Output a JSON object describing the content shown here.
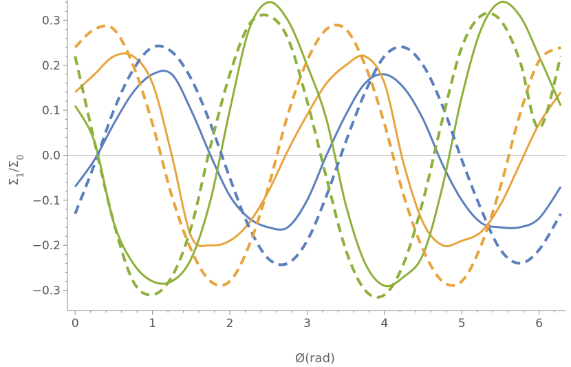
{
  "chart_data": {
    "type": "line",
    "title": "",
    "xlabel": "Ø(rad)",
    "ylabel": "Σ1/Σ0",
    "ylabel_main": "Σ",
    "ylabel_sub1": "1",
    "ylabel_slash": "/Σ",
    "ylabel_sub2": "0",
    "xlim": [
      -0.1,
      6.35
    ],
    "ylim": [
      -0.345,
      0.345
    ],
    "x_ticks": [
      0,
      1,
      2,
      3,
      4,
      5,
      6
    ],
    "x_tick_labels": [
      "0",
      "1",
      "2",
      "3",
      "4",
      "5",
      "6"
    ],
    "y_ticks": [
      -0.3,
      -0.2,
      -0.1,
      0.0,
      0.1,
      0.2,
      0.3
    ],
    "y_tick_labels": [
      "−0.3",
      "−0.2",
      "−0.1",
      "0.0",
      "0.1",
      "0.2",
      "0.3"
    ],
    "zero_line": true,
    "grid": false,
    "legend": "none",
    "colors": {
      "blue": "#5B7FBD",
      "orange": "#E8A33D",
      "green": "#8DB03A",
      "axis": "#888888",
      "zero": "#bbbbbb"
    },
    "series": [
      {
        "style": "solid",
        "color": "#5B7FBD",
        "x": [
          0.0,
          0.25,
          0.5,
          0.75,
          1.0,
          1.25,
          1.5,
          1.75,
          2.0,
          2.25,
          2.5,
          2.75,
          3.0,
          3.25,
          3.5,
          3.75,
          4.0,
          4.25,
          4.5,
          4.75,
          5.0,
          5.25,
          5.5,
          5.75,
          6.0,
          6.28
        ],
        "y": [
          -0.07,
          -0.01,
          0.07,
          0.14,
          0.18,
          0.18,
          0.1,
          0.0,
          -0.09,
          -0.14,
          -0.16,
          -0.16,
          -0.1,
          0.0,
          0.09,
          0.16,
          0.18,
          0.15,
          0.08,
          -0.02,
          -0.1,
          -0.15,
          -0.16,
          -0.16,
          -0.14,
          -0.07
        ]
      },
      {
        "style": "solid",
        "color": "#E8A33D",
        "x": [
          0.0,
          0.25,
          0.5,
          0.75,
          1.0,
          1.25,
          1.5,
          1.75,
          2.0,
          2.25,
          2.5,
          2.75,
          3.0,
          3.25,
          3.5,
          3.75,
          4.0,
          4.25,
          4.5,
          4.75,
          5.0,
          5.25,
          5.5,
          5.75,
          6.0,
          6.28
        ],
        "y": [
          0.14,
          0.18,
          0.22,
          0.22,
          0.16,
          0.0,
          -0.18,
          -0.2,
          -0.19,
          -0.15,
          -0.08,
          0.01,
          0.09,
          0.16,
          0.2,
          0.22,
          0.16,
          -0.02,
          -0.15,
          -0.2,
          -0.19,
          -0.17,
          -0.11,
          -0.02,
          0.07,
          0.14
        ]
      },
      {
        "style": "solid",
        "color": "#8DB03A",
        "x": [
          0.0,
          0.25,
          0.5,
          0.75,
          1.0,
          1.25,
          1.5,
          1.75,
          2.0,
          2.25,
          2.5,
          2.75,
          3.0,
          3.25,
          3.5,
          3.75,
          4.0,
          4.25,
          4.5,
          4.75,
          5.0,
          5.25,
          5.5,
          5.75,
          6.0,
          6.28
        ],
        "y": [
          0.11,
          0.03,
          -0.15,
          -0.24,
          -0.28,
          -0.28,
          -0.23,
          -0.1,
          0.1,
          0.28,
          0.34,
          0.3,
          0.2,
          0.08,
          -0.11,
          -0.24,
          -0.29,
          -0.27,
          -0.22,
          -0.07,
          0.13,
          0.28,
          0.34,
          0.31,
          0.22,
          0.11
        ]
      },
      {
        "style": "dashed",
        "color": "#5B7FBD",
        "x": [
          0.0,
          0.25,
          0.5,
          0.75,
          1.0,
          1.25,
          1.5,
          1.75,
          2.0,
          2.25,
          2.5,
          2.75,
          3.0,
          3.25,
          3.5,
          3.75,
          4.0,
          4.25,
          4.5,
          4.75,
          5.0,
          5.25,
          5.5,
          5.75,
          6.0,
          6.28
        ],
        "y": [
          -0.13,
          -0.02,
          0.1,
          0.19,
          0.24,
          0.23,
          0.17,
          0.07,
          -0.05,
          -0.16,
          -0.23,
          -0.24,
          -0.19,
          -0.09,
          0.03,
          0.14,
          0.22,
          0.24,
          0.2,
          0.11,
          -0.01,
          -0.12,
          -0.21,
          -0.24,
          -0.21,
          -0.13
        ]
      },
      {
        "style": "dashed",
        "color": "#E8A33D",
        "x": [
          0.0,
          0.25,
          0.5,
          0.75,
          1.0,
          1.25,
          1.5,
          1.75,
          2.0,
          2.25,
          2.5,
          2.75,
          3.0,
          3.25,
          3.5,
          3.75,
          4.0,
          4.25,
          4.5,
          4.75,
          5.0,
          5.25,
          5.5,
          5.75,
          6.0,
          6.28
        ],
        "y": [
          0.24,
          0.28,
          0.28,
          0.2,
          0.07,
          -0.09,
          -0.21,
          -0.28,
          -0.28,
          -0.2,
          -0.07,
          0.09,
          0.21,
          0.28,
          0.28,
          0.2,
          0.07,
          -0.09,
          -0.21,
          -0.28,
          -0.28,
          -0.2,
          -0.07,
          0.09,
          0.21,
          0.24
        ]
      },
      {
        "style": "dashed",
        "color": "#8DB03A",
        "x": [
          0.0,
          0.25,
          0.5,
          0.75,
          1.0,
          1.25,
          1.5,
          1.75,
          2.0,
          2.25,
          2.5,
          2.75,
          3.0,
          3.25,
          3.5,
          3.75,
          4.0,
          4.25,
          4.5,
          4.75,
          5.0,
          5.25,
          5.5,
          5.75,
          6.0,
          6.28
        ],
        "y": [
          0.22,
          0.03,
          -0.15,
          -0.28,
          -0.31,
          -0.27,
          -0.16,
          0.02,
          0.18,
          0.29,
          0.31,
          0.26,
          0.12,
          -0.05,
          -0.21,
          -0.3,
          -0.31,
          -0.24,
          -0.1,
          0.08,
          0.24,
          0.31,
          0.3,
          0.21,
          0.06,
          0.22
        ]
      }
    ]
  }
}
